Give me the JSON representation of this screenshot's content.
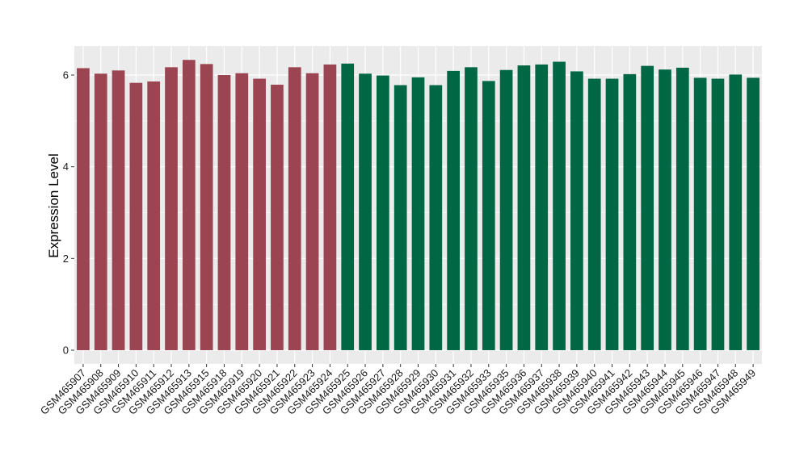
{
  "chart_data": {
    "type": "bar",
    "title": "",
    "xlabel": "",
    "ylabel": "Expression Level",
    "ylim": [
      0,
      6.6
    ],
    "yticks": [
      0,
      2,
      4,
      6
    ],
    "grid": true,
    "legend": "none",
    "colors": {
      "group1": "#9b4452",
      "group2": "#006745",
      "panel": "#ebebeb",
      "grid": "#ffffff"
    },
    "categories": [
      "GSM465907",
      "GSM465908",
      "GSM465909",
      "GSM465910",
      "GSM465911",
      "GSM465912",
      "GSM465913",
      "GSM465915",
      "GSM465918",
      "GSM465919",
      "GSM465920",
      "GSM465921",
      "GSM465922",
      "GSM465923",
      "GSM465924",
      "GSM465925",
      "GSM465926",
      "GSM465927",
      "GSM465928",
      "GSM465929",
      "GSM465930",
      "GSM465931",
      "GSM465932",
      "GSM465933",
      "GSM465935",
      "GSM465936",
      "GSM465937",
      "GSM465938",
      "GSM465939",
      "GSM465940",
      "GSM465941",
      "GSM465942",
      "GSM465943",
      "GSM465944",
      "GSM465945",
      "GSM465946",
      "GSM465947",
      "GSM465948",
      "GSM465949"
    ],
    "values": [
      6.15,
      6.03,
      6.1,
      5.83,
      5.86,
      6.17,
      6.33,
      6.24,
      6.0,
      6.04,
      5.92,
      5.79,
      6.17,
      6.04,
      6.23,
      6.25,
      6.03,
      5.99,
      5.78,
      5.95,
      5.78,
      6.09,
      6.17,
      5.87,
      6.11,
      6.21,
      6.23,
      6.29,
      6.08,
      5.92,
      5.92,
      6.02,
      6.2,
      6.12,
      6.16,
      5.94,
      5.92,
      6.01,
      5.94
    ],
    "groups": [
      1,
      1,
      1,
      1,
      1,
      1,
      1,
      1,
      1,
      1,
      1,
      1,
      1,
      1,
      1,
      2,
      2,
      2,
      2,
      2,
      2,
      2,
      2,
      2,
      2,
      2,
      2,
      2,
      2,
      2,
      2,
      2,
      2,
      2,
      2,
      2,
      2,
      2,
      2
    ]
  }
}
